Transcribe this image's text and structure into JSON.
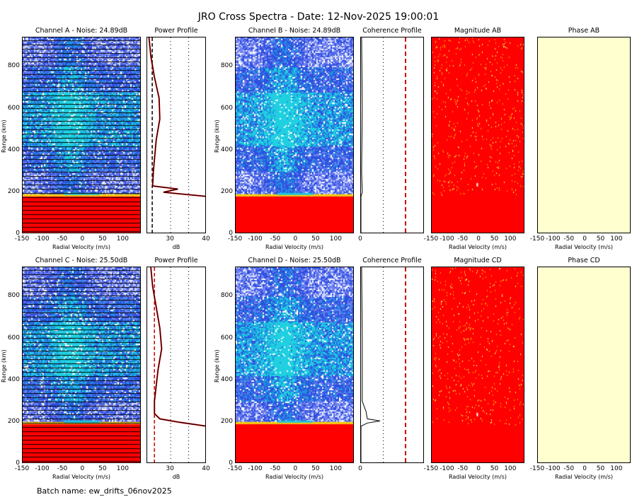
{
  "header": {
    "title": "JRO Cross Spectra - Date: 12-Nov-2025 19:00:01"
  },
  "footer": {
    "batch": "Batch name: ew_drifts_06nov2025"
  },
  "colors": {
    "red": "#ff0000",
    "phase_fill": "#ffffd0",
    "blue": "#3040e0",
    "cyan": "#20c0e0",
    "profile": "#000000"
  },
  "chart_data": [
    {
      "type": "heatmap",
      "title": "Channel A - Noise: 24.89dB",
      "xlabel": "Radial Velocity (m/s)",
      "ylabel": "Range (km)",
      "xlim": [
        -150,
        145
      ],
      "ylim": [
        0,
        940
      ],
      "xticks": [
        "-150",
        "-100",
        "-50",
        "0",
        "50",
        "100"
      ],
      "yticks": [
        "0",
        "200",
        "400",
        "600",
        "800"
      ],
      "saturated_below_km": 180
    },
    {
      "type": "line",
      "title": "Power Profile",
      "xlabel": "dB",
      "xlim": [
        23.5,
        40
      ],
      "xticks": [
        "30",
        "40"
      ],
      "noise_db": 24.89,
      "profile": [
        [
          0,
          40
        ],
        [
          180,
          40
        ],
        [
          200,
          28
        ],
        [
          215,
          32
        ],
        [
          230,
          25
        ],
        [
          300,
          25.2
        ],
        [
          450,
          26
        ],
        [
          550,
          27
        ],
        [
          650,
          26.8
        ],
        [
          750,
          25.5
        ],
        [
          850,
          24.5
        ],
        [
          940,
          24
        ]
      ]
    },
    {
      "type": "heatmap",
      "title": "Channel B - Noise: 24.89dB",
      "xlabel": "Radial Velocity (m/s)",
      "ylabel": "Range (km)",
      "xlim": [
        -150,
        145
      ],
      "ylim": [
        0,
        940
      ],
      "xticks": [
        "-150",
        "-100",
        "-50",
        "0",
        "50",
        "100"
      ],
      "yticks": [
        "0",
        "200",
        "400",
        "600",
        "800"
      ],
      "saturated_below_km": 180
    },
    {
      "type": "line",
      "title": "Coherence Profile",
      "xlim": [
        0,
        1
      ],
      "xticks": [
        "0"
      ],
      "threshold": 0.7,
      "profile": [
        [
          0,
          0
        ],
        [
          180,
          0
        ],
        [
          200,
          0.02
        ],
        [
          300,
          0.01
        ],
        [
          600,
          0.02
        ],
        [
          940,
          0.01
        ]
      ]
    },
    {
      "type": "heatmap",
      "title": "Magnitude AB",
      "xlabel": "Radial Velocity (m/s)",
      "xlim": [
        -150,
        145
      ],
      "xticks": [
        "-150",
        "-100",
        "-50",
        "0",
        "50",
        "100"
      ]
    },
    {
      "type": "heatmap",
      "title": "Phase AB",
      "xlabel": "Radial Velocity (m/s)",
      "xlim": [
        -150,
        145
      ],
      "xticks": [
        "-150",
        "-100",
        "-50",
        "0",
        "50",
        "100"
      ]
    },
    {
      "type": "heatmap",
      "title": "Channel C - Noise: 25.50dB",
      "xlabel": "Radial Velocity (m/s)",
      "ylabel": "Range (km)",
      "xlim": [
        -150,
        145
      ],
      "ylim": [
        0,
        940
      ],
      "xticks": [
        "-150",
        "-100",
        "-50",
        "0",
        "50",
        "100"
      ],
      "yticks": [
        "0",
        "200",
        "400",
        "600",
        "800"
      ],
      "saturated_below_km": 190
    },
    {
      "type": "line",
      "title": "Power Profile",
      "xlabel": "dB",
      "xlim": [
        23.5,
        40
      ],
      "xticks": [
        "30",
        "40"
      ],
      "noise_db": 25.5,
      "profile": [
        [
          0,
          40
        ],
        [
          180,
          40
        ],
        [
          200,
          32
        ],
        [
          215,
          27
        ],
        [
          240,
          25.5
        ],
        [
          300,
          25.5
        ],
        [
          450,
          26.5
        ],
        [
          550,
          27.5
        ],
        [
          650,
          27
        ],
        [
          750,
          26
        ],
        [
          850,
          25
        ],
        [
          940,
          24.5
        ]
      ]
    },
    {
      "type": "heatmap",
      "title": "Channel D - Noise: 25.50dB",
      "xlabel": "Radial Velocity (m/s)",
      "ylabel": "Range (km)",
      "xlim": [
        -150,
        145
      ],
      "ylim": [
        0,
        940
      ],
      "xticks": [
        "-150",
        "-100",
        "-50",
        "0",
        "50",
        "100"
      ],
      "yticks": [
        "0",
        "200",
        "400",
        "600",
        "800"
      ],
      "saturated_below_km": 190
    },
    {
      "type": "line",
      "title": "Coherence Profile",
      "xlim": [
        0,
        1
      ],
      "xticks": [
        "0"
      ],
      "threshold": 0.7,
      "profile": [
        [
          0,
          0
        ],
        [
          180,
          0
        ],
        [
          195,
          0.1
        ],
        [
          205,
          0.3
        ],
        [
          215,
          0.1
        ],
        [
          250,
          0.08
        ],
        [
          300,
          0.02
        ],
        [
          600,
          0.02
        ],
        [
          940,
          0.01
        ]
      ]
    },
    {
      "type": "heatmap",
      "title": "Magnitude CD",
      "xlabel": "Radial Velocity (m/s)",
      "xlim": [
        -150,
        145
      ],
      "xticks": [
        "-150",
        "-100",
        "-50",
        "0",
        "50",
        "100"
      ]
    },
    {
      "type": "heatmap",
      "title": "Phase CD",
      "xlabel": "Radial Velocity (m/s)",
      "xlim": [
        -150,
        145
      ],
      "xticks": [
        "-150",
        "-100",
        "-50",
        "0",
        "50",
        "100"
      ]
    }
  ]
}
